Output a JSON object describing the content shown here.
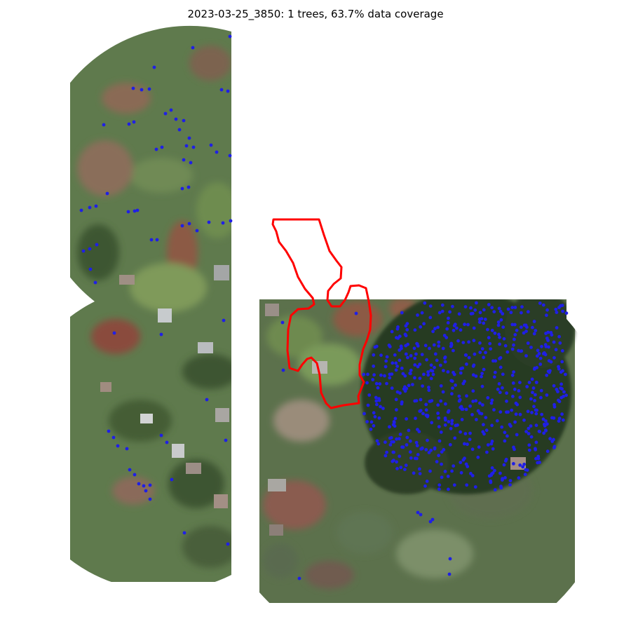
{
  "figure": {
    "title": "2023-03-25_3850: 1 trees, 63.7% data coverage"
  },
  "map": {
    "layers": [
      "aerial-imagery",
      "tree-detections",
      "boundary-polygon"
    ],
    "colors": {
      "detection_point": "#1f1fe6",
      "boundary_outline": "#ff0000",
      "vegetation_base": "#5f7a4d",
      "dense_canopy": "#283a22",
      "bare_soil": "#8c5a45",
      "roof": "#b9bcbf",
      "background": "#ffffff"
    }
  }
}
